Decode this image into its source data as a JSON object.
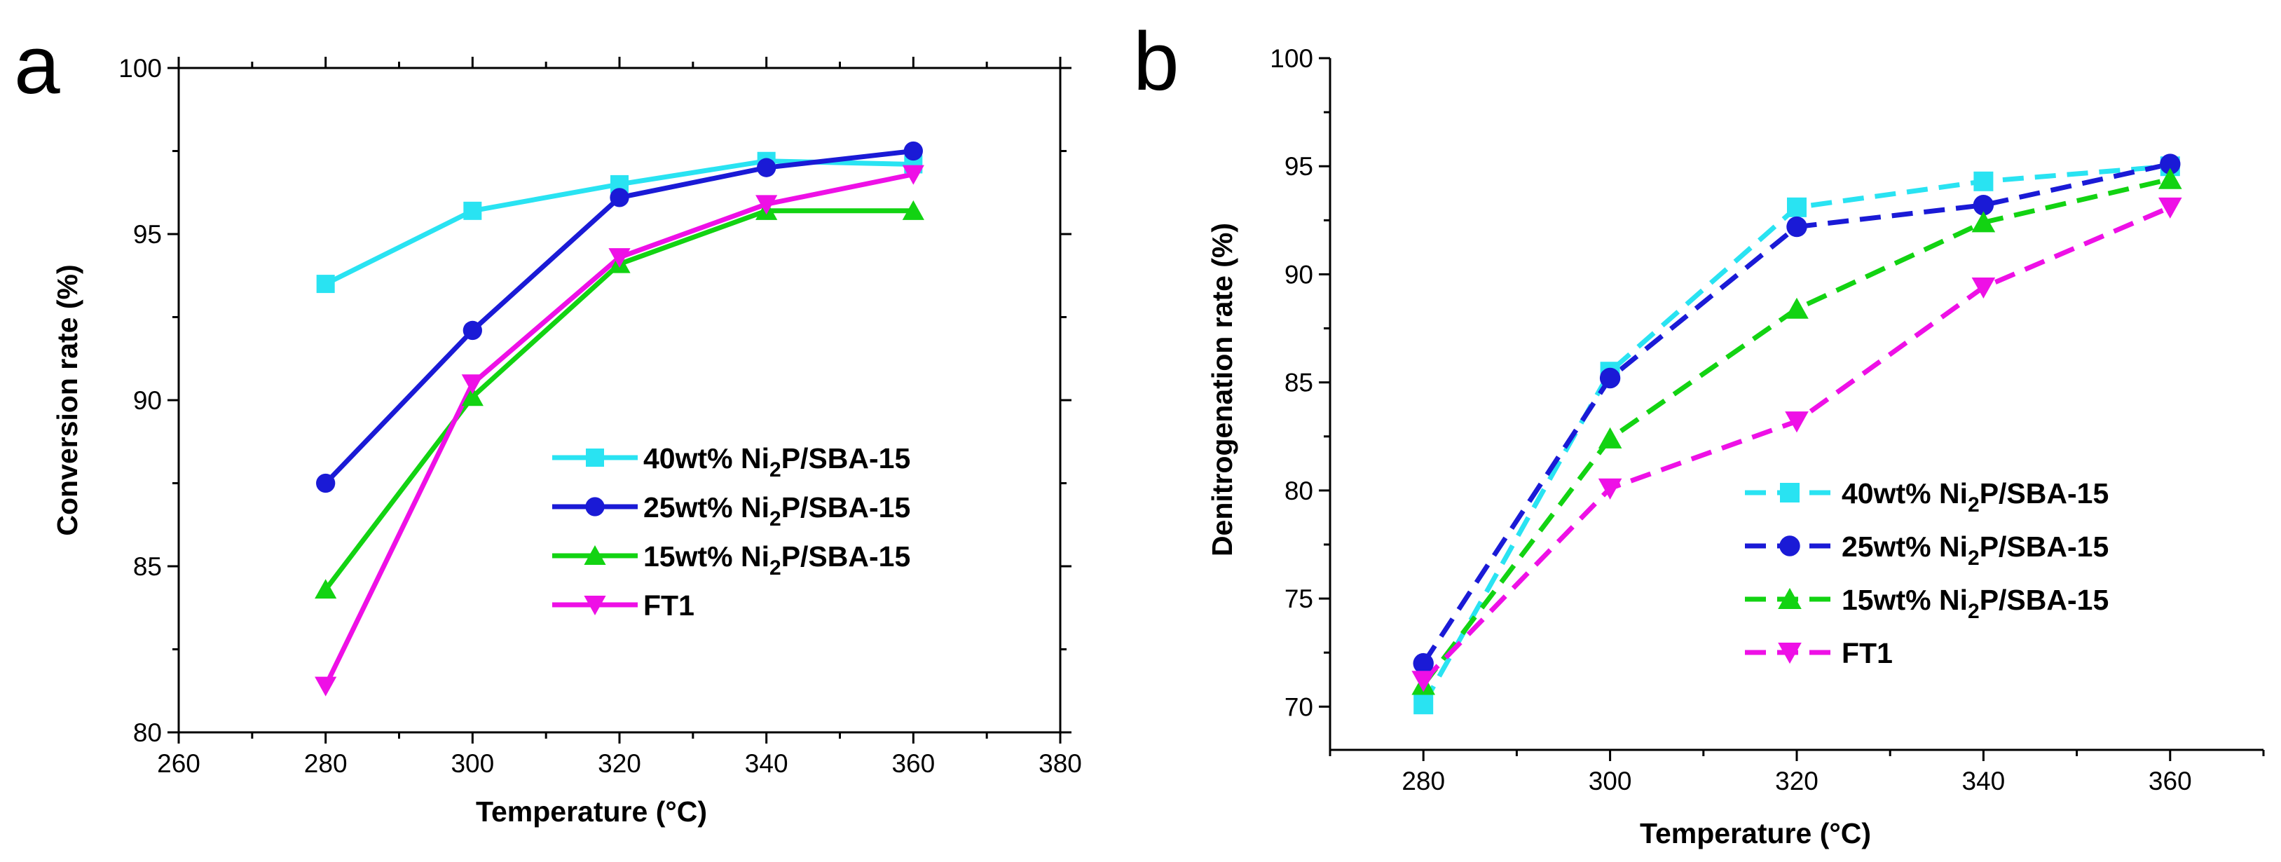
{
  "panels": [
    {
      "letter": "a",
      "chart_data": {
        "type": "line",
        "xlabel": "Temperature (°C)",
        "ylabel": "Conversion rate (%)",
        "xlim": [
          260,
          380
        ],
        "ylim": [
          80,
          100
        ],
        "xticks": [
          260,
          280,
          300,
          320,
          340,
          360,
          380
        ],
        "yticks": [
          80,
          85,
          90,
          95,
          100
        ],
        "x": [
          280,
          300,
          320,
          340,
          360
        ],
        "line_style": "solid",
        "legend_position": "center-right",
        "grid": false,
        "series": [
          {
            "name": "40wt% Ni2P/SBA-15",
            "name_pre": "40wt% Ni",
            "name_sub": "2",
            "name_post": "P/SBA-15",
            "marker": "square",
            "color": "#29e3f2",
            "values": [
              93.5,
              95.7,
              96.5,
              97.2,
              97.1
            ]
          },
          {
            "name": "25wt% Ni2P/SBA-15",
            "name_pre": "25wt% Ni",
            "name_sub": "2",
            "name_post": "P/SBA-15",
            "marker": "circle",
            "color": "#1a1ad6",
            "values": [
              87.5,
              92.1,
              96.1,
              97.0,
              97.5
            ]
          },
          {
            "name": "15wt% Ni2P/SBA-15",
            "name_pre": "15wt% Ni",
            "name_sub": "2",
            "name_post": "P/SBA-15",
            "marker": "triangle-up",
            "color": "#12d312",
            "values": [
              84.3,
              90.1,
              94.1,
              95.7,
              95.7
            ]
          },
          {
            "name": "FT1",
            "name_pre": "FT1",
            "name_sub": "",
            "name_post": "",
            "marker": "triangle-down",
            "color": "#ee10e6",
            "values": [
              81.4,
              90.5,
              94.3,
              95.9,
              96.8
            ]
          }
        ]
      }
    },
    {
      "letter": "b",
      "chart_data": {
        "type": "line",
        "xlabel": "Temperature (°C)",
        "ylabel": "Denitrogenation rate (%)",
        "xlim": [
          270,
          370
        ],
        "ylim": [
          68,
          100
        ],
        "xticks": [
          280,
          300,
          320,
          340,
          360
        ],
        "yticks": [
          70,
          75,
          80,
          85,
          90,
          95,
          100
        ],
        "x": [
          280,
          300,
          320,
          340,
          360
        ],
        "line_style": "dashed",
        "legend_position": "lower-right",
        "grid": false,
        "series": [
          {
            "name": "40wt% Ni2P/SBA-15",
            "name_pre": "40wt% Ni",
            "name_sub": "2",
            "name_post": "P/SBA-15",
            "marker": "square",
            "color": "#29e3f2",
            "values": [
              70.1,
              85.5,
              93.1,
              94.3,
              95.0
            ]
          },
          {
            "name": "25wt% Ni2P/SBA-15",
            "name_pre": "25wt% Ni",
            "name_sub": "2",
            "name_post": "P/SBA-15",
            "marker": "circle",
            "color": "#1a1ad6",
            "values": [
              72.0,
              85.2,
              92.2,
              93.2,
              95.1
            ]
          },
          {
            "name": "15wt% Ni2P/SBA-15",
            "name_pre": "15wt% Ni",
            "name_sub": "2",
            "name_post": "P/SBA-15",
            "marker": "triangle-up",
            "color": "#12d312",
            "values": [
              71.0,
              82.4,
              88.4,
              92.4,
              94.4
            ]
          },
          {
            "name": "FT1",
            "name_pre": "FT1",
            "name_sub": "",
            "name_post": "",
            "marker": "triangle-down",
            "color": "#ee10e6",
            "values": [
              71.2,
              80.1,
              83.2,
              89.4,
              93.1
            ]
          }
        ]
      }
    }
  ]
}
